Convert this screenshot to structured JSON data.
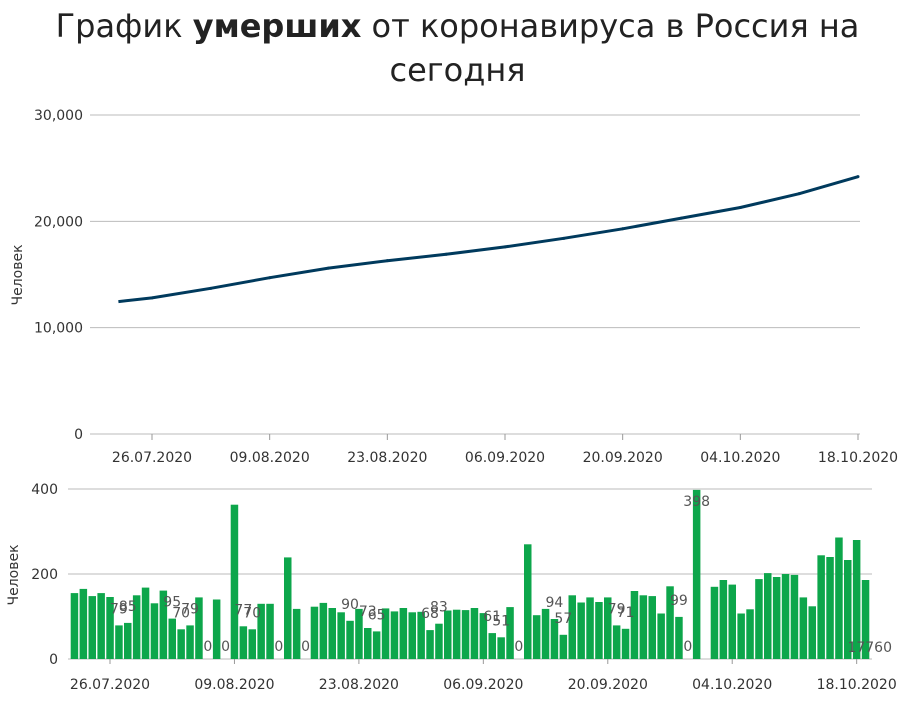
{
  "title": {
    "before": "График ",
    "bold": "умерших",
    "after": " от коронавируса в Россия на сегодня"
  },
  "colors": {
    "line": "#003a5d",
    "bar": "#0da64b",
    "grid": "#bbbbbb"
  },
  "chart_data": [
    {
      "type": "line",
      "ylabel": "Человек",
      "ylim": [
        0,
        30000
      ],
      "yticks": [
        "0",
        "10,000",
        "20,000",
        "30,000"
      ],
      "xticks": [
        "26.07.2020",
        "09.08.2020",
        "23.08.2020",
        "06.09.2020",
        "20.09.2020",
        "04.10.2020",
        "18.10.2020"
      ],
      "x": [
        "26.07.2020",
        "02.08.2020",
        "09.08.2020",
        "16.08.2020",
        "23.08.2020",
        "30.08.2020",
        "06.09.2020",
        "13.09.2020",
        "20.09.2020",
        "27.09.2020",
        "04.10.2020",
        "11.10.2020",
        "18.10.2020"
      ],
      "values": [
        12800,
        13700,
        14700,
        15600,
        16300,
        16900,
        17600,
        18400,
        19300,
        20300,
        21300,
        22600,
        24200
      ],
      "grid": true
    },
    {
      "type": "bar",
      "ylabel": "Человек",
      "ylim": [
        0,
        400
      ],
      "yticks": [
        "0",
        "200",
        "400"
      ],
      "xticks": [
        "26.07.2020",
        "09.08.2020",
        "23.08.2020",
        "06.09.2020",
        "20.09.2020",
        "04.10.2020",
        "18.10.2020"
      ],
      "x": [
        "22.07.2020",
        "23.07.2020",
        "24.07.2020",
        "25.07.2020",
        "26.07.2020",
        "27.07.2020",
        "28.07.2020",
        "29.07.2020",
        "30.07.2020",
        "31.07.2020",
        "01.08.2020",
        "02.08.2020",
        "03.08.2020",
        "04.08.2020",
        "05.08.2020",
        "06.08.2020",
        "07.08.2020",
        "08.08.2020",
        "09.08.2020",
        "10.08.2020",
        "11.08.2020",
        "12.08.2020",
        "13.08.2020",
        "14.08.2020",
        "15.08.2020",
        "16.08.2020",
        "17.08.2020",
        "18.08.2020",
        "19.08.2020",
        "20.08.2020",
        "21.08.2020",
        "22.08.2020",
        "23.08.2020",
        "24.08.2020",
        "25.08.2020",
        "26.08.2020",
        "27.08.2020",
        "28.08.2020",
        "29.08.2020",
        "30.08.2020",
        "31.08.2020",
        "01.09.2020",
        "02.09.2020",
        "03.09.2020",
        "04.09.2020",
        "05.09.2020",
        "06.09.2020",
        "07.09.2020",
        "08.09.2020",
        "09.09.2020",
        "10.09.2020",
        "11.09.2020",
        "12.09.2020",
        "13.09.2020",
        "14.09.2020",
        "15.09.2020",
        "16.09.2020",
        "17.09.2020",
        "18.09.2020",
        "19.09.2020",
        "20.09.2020",
        "21.09.2020",
        "22.09.2020",
        "23.09.2020",
        "24.09.2020",
        "25.09.2020",
        "26.09.2020",
        "27.09.2020",
        "28.09.2020",
        "29.09.2020",
        "30.09.2020",
        "01.10.2020",
        "02.10.2020",
        "03.10.2020",
        "04.10.2020",
        "05.10.2020",
        "06.10.2020",
        "07.10.2020",
        "08.10.2020",
        "09.10.2020",
        "10.10.2020",
        "11.10.2020",
        "12.10.2020",
        "13.10.2020",
        "14.10.2020",
        "15.10.2020",
        "16.10.2020",
        "17.10.2020",
        "18.10.2020",
        "19.10.2020"
      ],
      "values": [
        155,
        165,
        148,
        155,
        146,
        79,
        85,
        150,
        168,
        131,
        161,
        95,
        70,
        79,
        145,
        0,
        140,
        0,
        363,
        77,
        70,
        130,
        130,
        0,
        239,
        118,
        0,
        123,
        132,
        120,
        110,
        90,
        118,
        73,
        65,
        119,
        112,
        120,
        110,
        111,
        68,
        83,
        114,
        116,
        115,
        120,
        108,
        61,
        51,
        122,
        0,
        270,
        103,
        118,
        94,
        57,
        150,
        133,
        145,
        134,
        145,
        79,
        71,
        160,
        150,
        148,
        107,
        171,
        99,
        0,
        398,
        0,
        170,
        186,
        175,
        107,
        117,
        188,
        202,
        193,
        200,
        198,
        145,
        124,
        244,
        240,
        286,
        233,
        280,
        186
      ],
      "labels": [
        "79",
        "85",
        "95",
        "70",
        "79",
        "0",
        "0",
        "77",
        "70",
        "0",
        "0",
        "90",
        "73",
        "65",
        "68",
        "83",
        "61",
        "51",
        "0",
        "94",
        "57",
        "79",
        "71",
        "99",
        "0",
        "398",
        "17760"
      ],
      "grid": true
    }
  ]
}
